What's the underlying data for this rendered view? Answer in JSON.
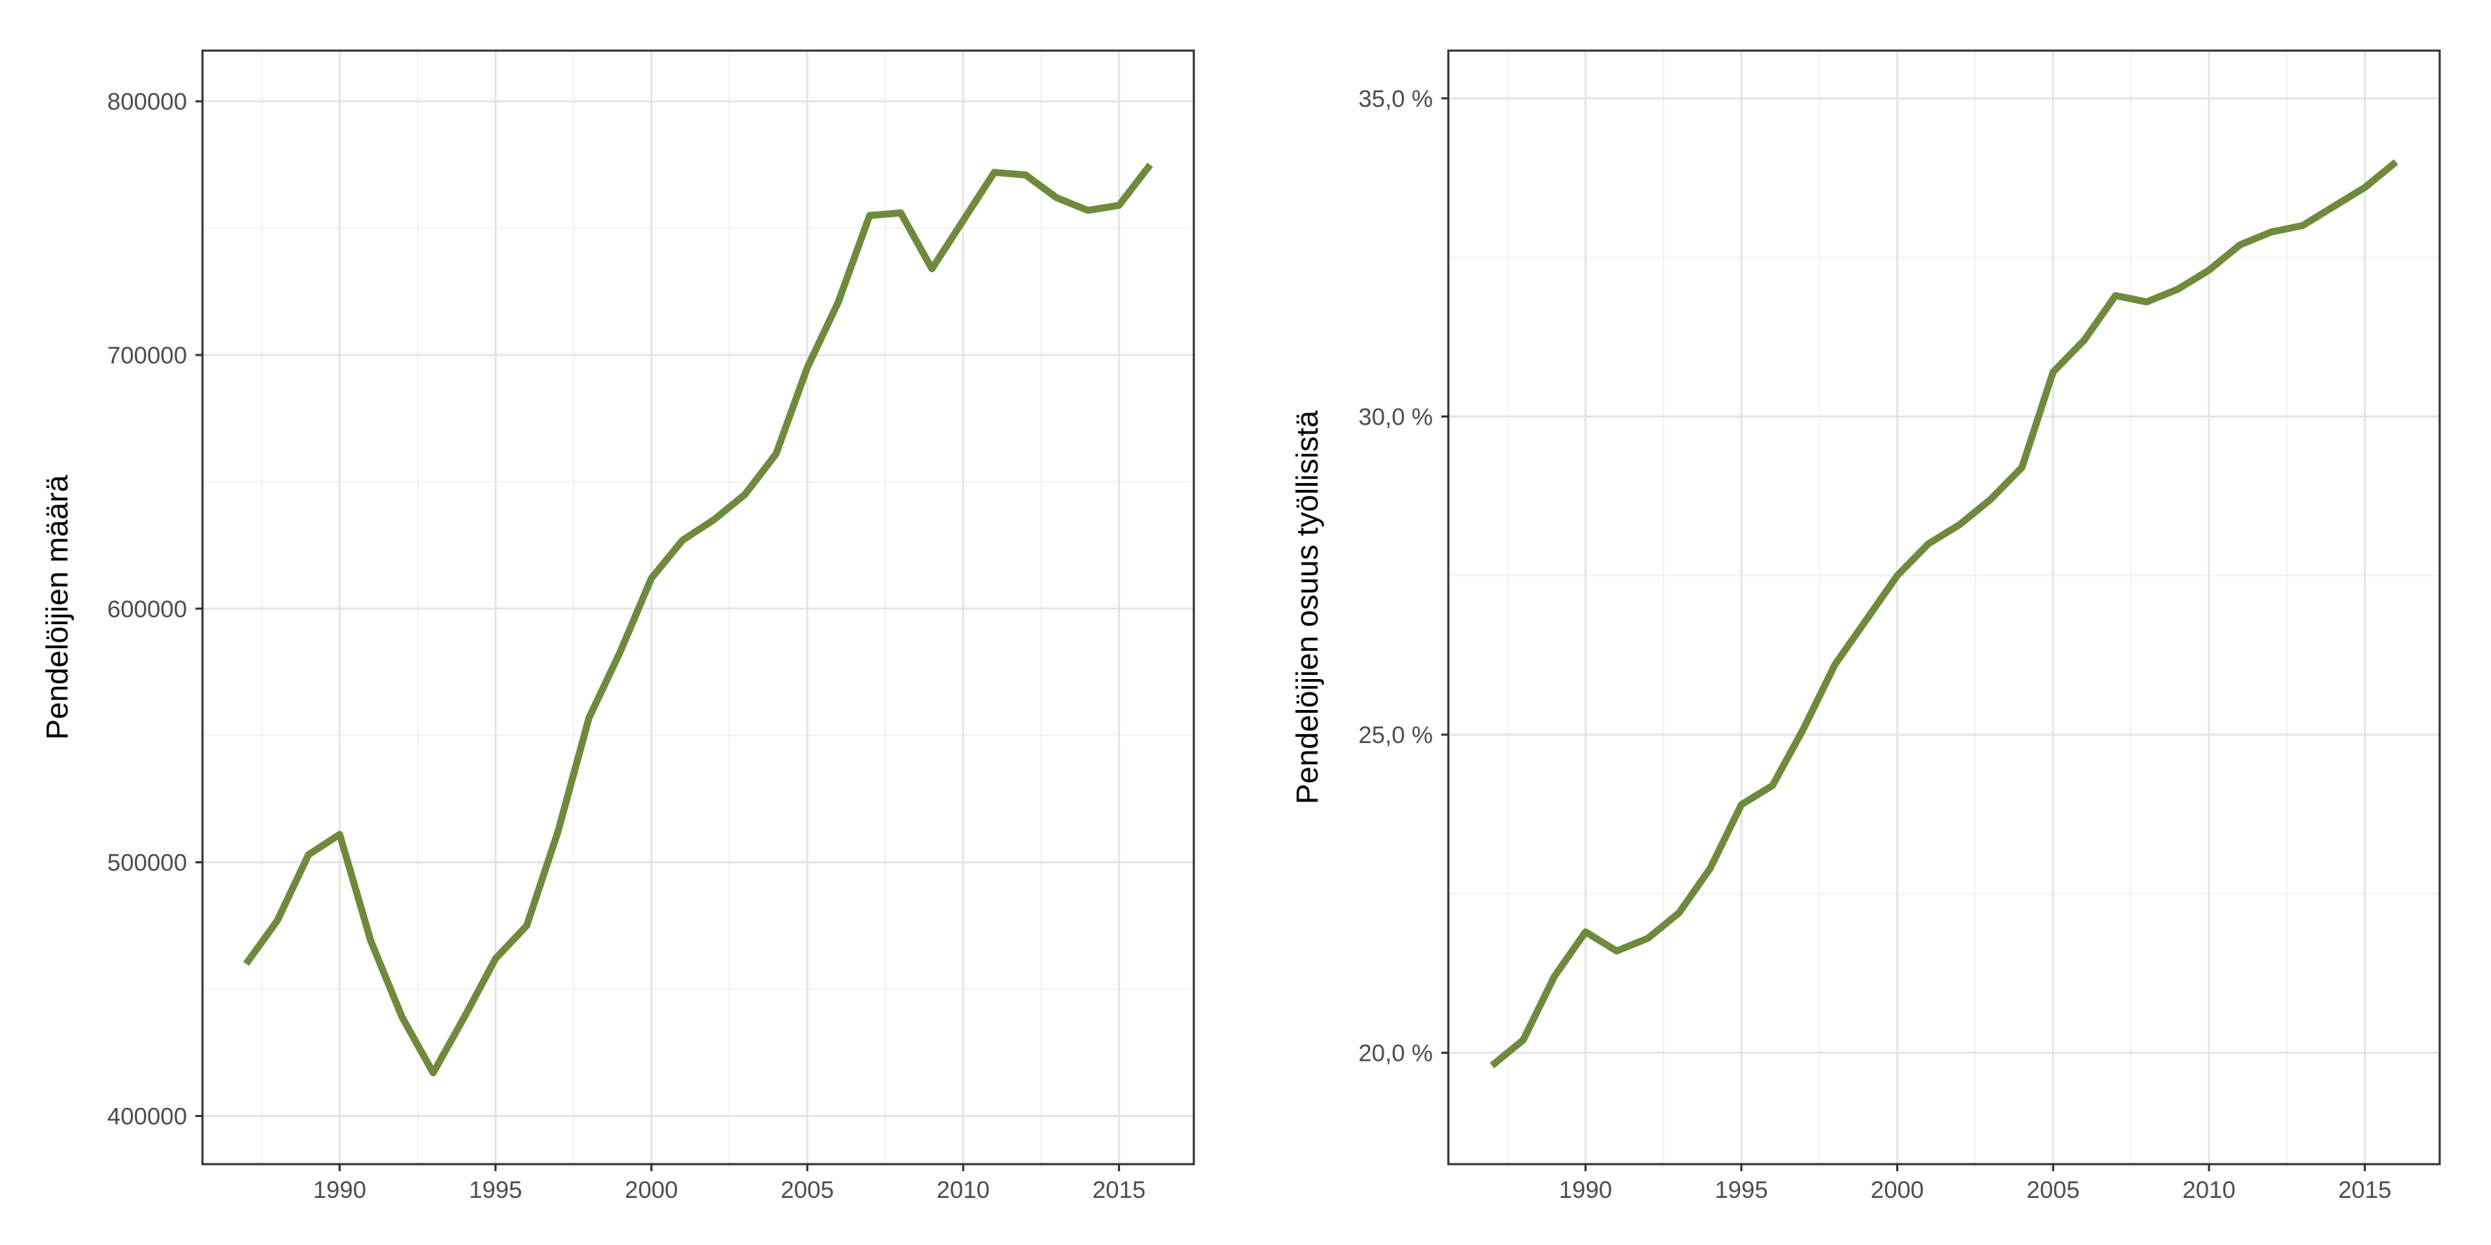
{
  "chart_data": [
    {
      "type": "line",
      "title": "",
      "xlabel": "",
      "ylabel": "Pendelöijien määrä",
      "x": [
        1987,
        1988,
        1989,
        1990,
        1991,
        1992,
        1993,
        1994,
        1995,
        1996,
        1997,
        1998,
        1999,
        2000,
        2001,
        2002,
        2003,
        2004,
        2005,
        2006,
        2007,
        2008,
        2009,
        2010,
        2011,
        2012,
        2013,
        2014,
        2015,
        2016
      ],
      "series": [
        {
          "values": [
            460000,
            477000,
            503000,
            511000,
            469000,
            439000,
            417000,
            439000,
            462000,
            475000,
            512000,
            557000,
            583000,
            612000,
            627000,
            635000,
            645000,
            661000,
            695000,
            721000,
            755000,
            756000,
            734000,
            753000,
            772000,
            771000,
            762000,
            757000,
            759000,
            775000
          ]
        }
      ],
      "xlim": [
        1985.6,
        2017.4
      ],
      "ylim": [
        381000,
        820000
      ],
      "x_ticks": [
        1990,
        1995,
        2000,
        2005,
        2010,
        2015
      ],
      "x_tick_labels": [
        "1990",
        "1995",
        "2000",
        "2005",
        "2010",
        "2015"
      ],
      "y_ticks": [
        400000,
        500000,
        600000,
        700000,
        800000
      ],
      "y_tick_labels": [
        "400000",
        "500000",
        "600000",
        "700000",
        "800000"
      ],
      "grid": true,
      "line_color": "#6e8b3d"
    },
    {
      "type": "line",
      "title": "",
      "xlabel": "",
      "ylabel": "Pendelöijien osuus työllisistä",
      "x": [
        1987,
        1988,
        1989,
        1990,
        1991,
        1992,
        1993,
        1994,
        1995,
        1996,
        1997,
        1998,
        1999,
        2000,
        2001,
        2002,
        2003,
        2004,
        2005,
        2006,
        2007,
        2008,
        2009,
        2010,
        2011,
        2012,
        2013,
        2014,
        2015,
        2016
      ],
      "series": [
        {
          "values": [
            19.8,
            20.2,
            21.2,
            21.9,
            21.6,
            21.8,
            22.2,
            22.9,
            23.9,
            24.2,
            25.1,
            26.1,
            26.8,
            27.5,
            28.0,
            28.3,
            28.7,
            29.2,
            30.7,
            31.2,
            31.9,
            31.8,
            32.0,
            32.3,
            32.7,
            32.9,
            33.0,
            33.3,
            33.6,
            34.0
          ],
          "unit": "%"
        }
      ],
      "xlim": [
        1985.6,
        2017.4
      ],
      "ylim": [
        18.25,
        35.75
      ],
      "x_ticks": [
        1990,
        1995,
        2000,
        2005,
        2010,
        2015
      ],
      "x_tick_labels": [
        "1990",
        "1995",
        "2000",
        "2005",
        "2010",
        "2015"
      ],
      "y_ticks": [
        20,
        25,
        30,
        35
      ],
      "y_tick_labels": [
        "20,0 %",
        "25,0 %",
        "30,0 %",
        "35,0 %"
      ],
      "grid": true,
      "line_color": "#6e8b3d"
    }
  ]
}
